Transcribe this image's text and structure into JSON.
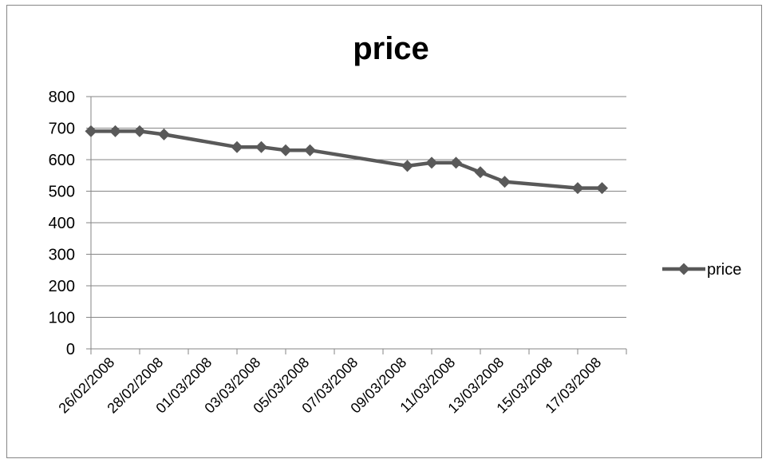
{
  "chart_data": {
    "type": "line",
    "title": "price",
    "xlabel": "",
    "ylabel": "",
    "ylim": [
      0,
      800
    ],
    "yticks": [
      "0",
      "100",
      "200",
      "300",
      "400",
      "500",
      "600",
      "700",
      "800"
    ],
    "xlim": [
      "2008-02-26",
      "2008-03-19"
    ],
    "xtick_labels": [
      "26/02/2008",
      "28/02/2008",
      "01/03/2008",
      "03/03/2008",
      "05/03/2008",
      "07/03/2008",
      "09/03/2008",
      "11/03/2008",
      "13/03/2008",
      "15/03/2008",
      "17/03/2008"
    ],
    "grid": "horizontal",
    "legend": "right",
    "series": [
      {
        "name": "price",
        "color": "#595959",
        "marker": "diamond",
        "x": [
          "2008-02-26",
          "2008-02-27",
          "2008-02-28",
          "2008-02-29",
          "2008-03-03",
          "2008-03-04",
          "2008-03-05",
          "2008-03-06",
          "2008-03-10",
          "2008-03-11",
          "2008-03-12",
          "2008-03-13",
          "2008-03-14",
          "2008-03-17",
          "2008-03-18"
        ],
        "y": [
          690,
          690,
          690,
          680,
          640,
          640,
          630,
          630,
          580,
          590,
          590,
          560,
          530,
          510,
          510
        ]
      }
    ]
  }
}
